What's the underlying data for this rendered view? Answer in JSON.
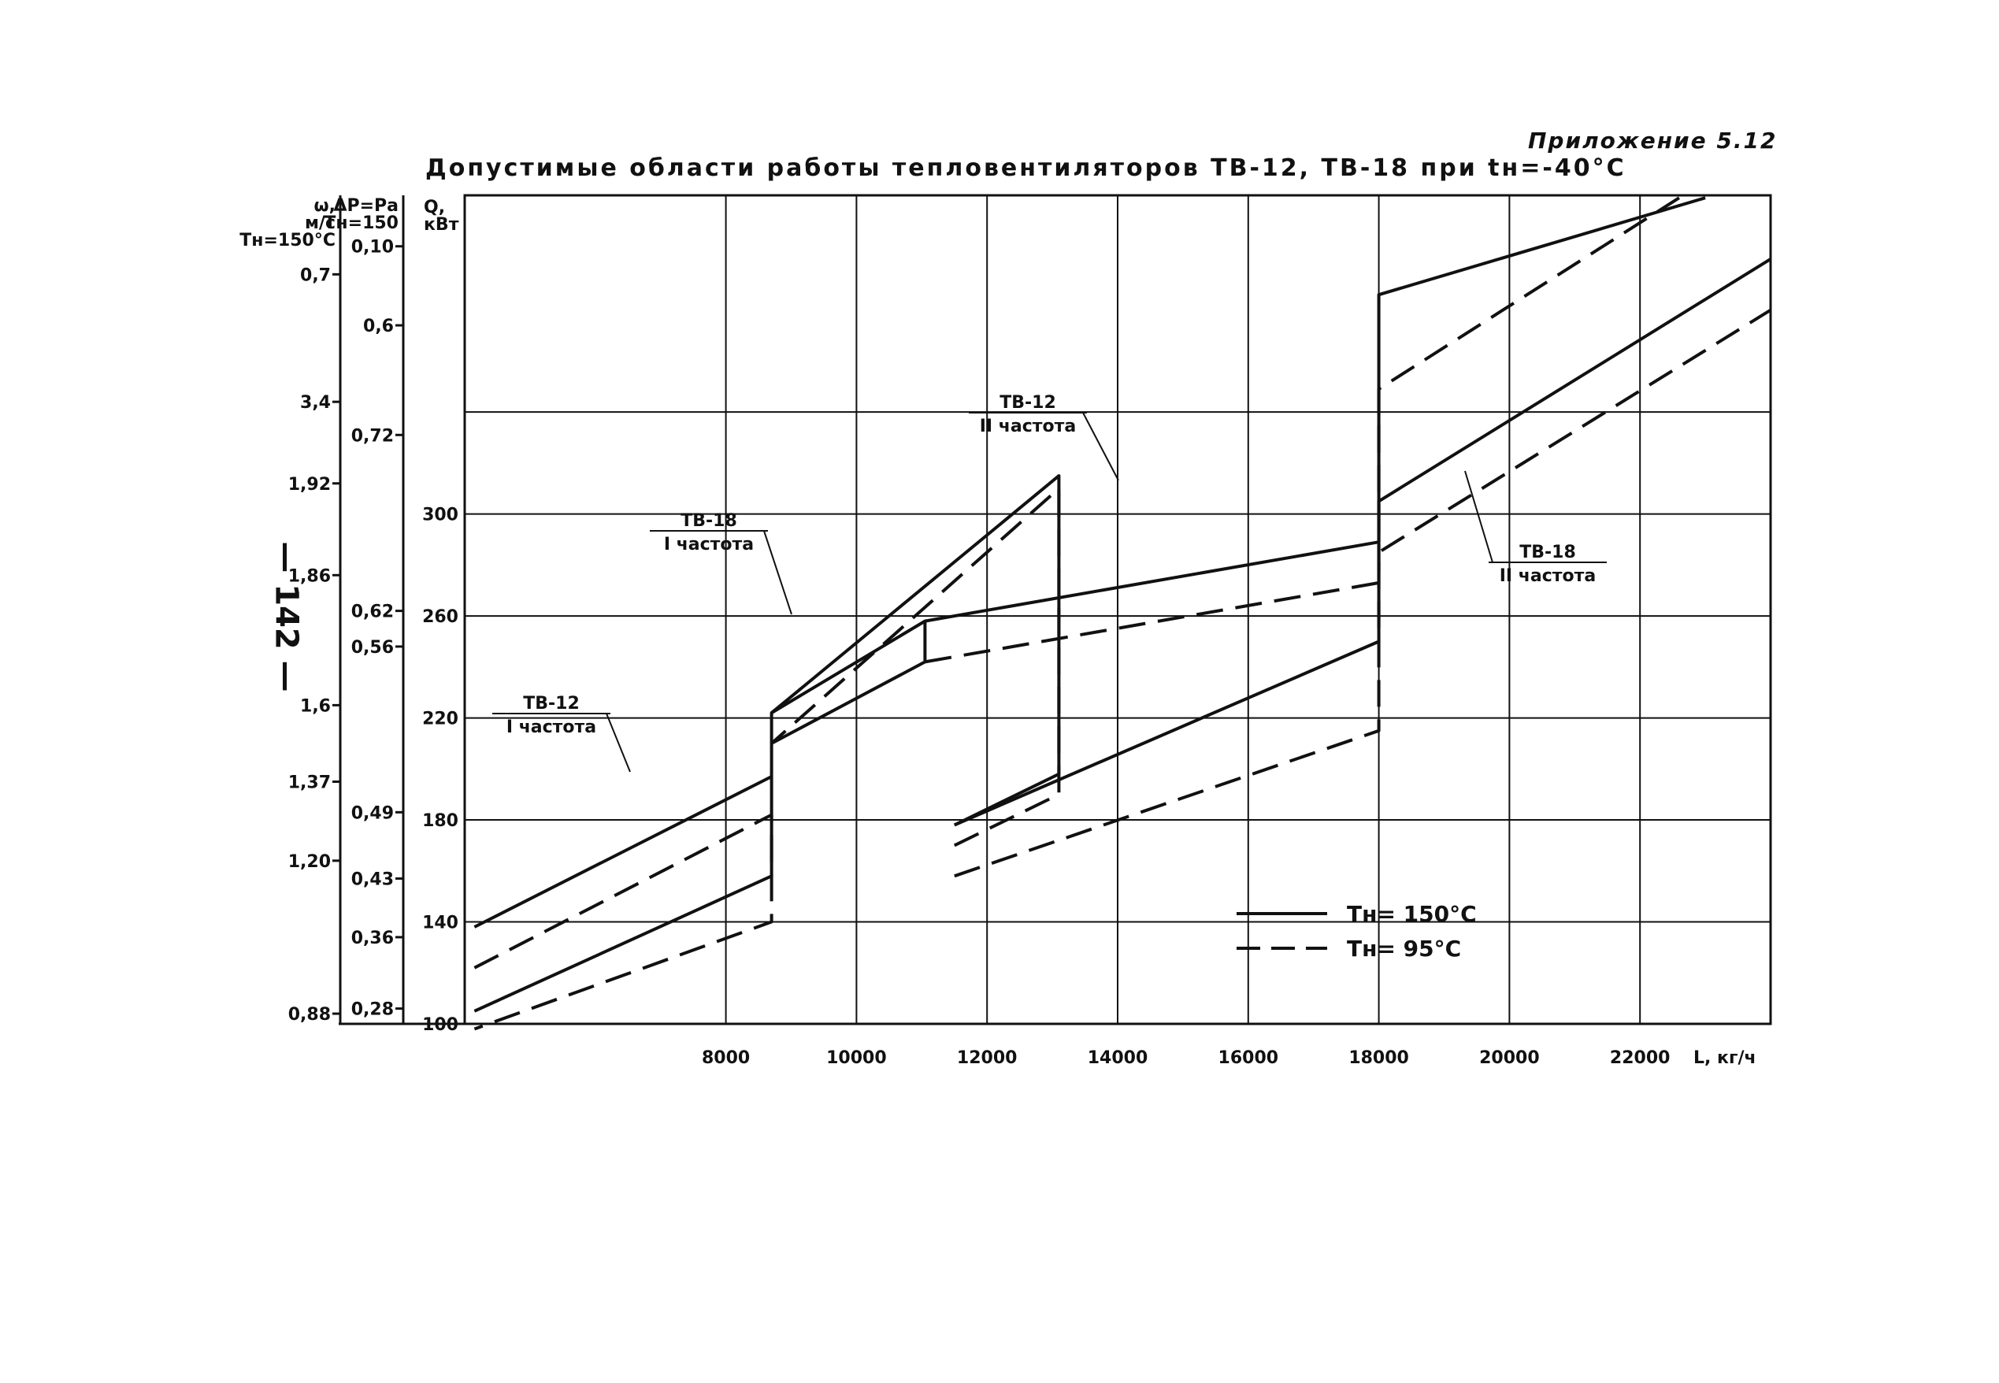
{
  "appendix_label": "Приложение 5.12",
  "side_note": "— 142 —",
  "chart_data": {
    "type": "line",
    "title": "Допустимые области работы тепловентиляторов ТВ-12, ТВ-18 при tн=-40°С",
    "xlabel": "L, кг/ч",
    "xlim": [
      4000,
      24000
    ],
    "x_ticks": [
      {
        "value": 8000,
        "label": "8000"
      },
      {
        "value": 10000,
        "label": "10000"
      },
      {
        "value": 12000,
        "label": "12000"
      },
      {
        "value": 14000,
        "label": "14000"
      },
      {
        "value": 16000,
        "label": "16000"
      },
      {
        "value": 18000,
        "label": "18000"
      },
      {
        "value": 20000,
        "label": "20000"
      },
      {
        "value": 22000,
        "label": "22000"
      }
    ],
    "ylabel": "Q, кВт",
    "ylim": [
      100,
      425
    ],
    "y_ticks": [
      {
        "value": 100,
        "label": "100"
      },
      {
        "value": 140,
        "label": "140"
      },
      {
        "value": 180,
        "label": "180"
      },
      {
        "value": 220,
        "label": "220"
      },
      {
        "value": 260,
        "label": "260"
      },
      {
        "value": 300,
        "label": "300"
      }
    ],
    "aux_axes": [
      {
        "header": [
          "ω,",
          "м/с",
          "Tн=150°С"
        ],
        "ticks": [
          {
            "y": 394,
            "label": "0,7"
          },
          {
            "y": 344,
            "label": "3,4"
          },
          {
            "y": 312,
            "label": "1,92"
          },
          {
            "y": 276,
            "label": "1,86"
          },
          {
            "y": 225,
            "label": "1,6"
          },
          {
            "y": 195,
            "label": "1,37"
          },
          {
            "y": 164,
            "label": "1,20"
          },
          {
            "y": 104,
            "label": "0,88"
          }
        ]
      },
      {
        "header": [
          "ΔP=Pа",
          "Tн=150"
        ],
        "ticks": [
          {
            "y": 405,
            "label": "0,10"
          },
          {
            "y": 374,
            "label": "0,6"
          },
          {
            "y": 331,
            "label": "0,72"
          },
          {
            "y": 262,
            "label": "0,62"
          },
          {
            "y": 248,
            "label": "0,56"
          },
          {
            "y": 183,
            "label": "0,49"
          },
          {
            "y": 157,
            "label": "0,43"
          },
          {
            "y": 134,
            "label": "0,36"
          },
          {
            "y": 106,
            "label": "0,28"
          }
        ]
      }
    ],
    "grid": true,
    "legend": {
      "placement": "bottom-right",
      "entries": [
        {
          "style": "solid",
          "label": "Тн= 150°С"
        },
        {
          "style": "dashed",
          "label": "Тн= 95°С"
        }
      ]
    },
    "regions": [
      {
        "label": [
          "ТВ-12",
          "I частота"
        ],
        "series": [
          {
            "style": "solid",
            "points": [
              [
                4150,
                138
              ],
              [
                8700,
                197
              ],
              [
                8700,
                222
              ],
              [
                11050,
                258
              ],
              [
                11050,
                242
              ],
              [
                8700,
                210
              ],
              [
                8700,
                158
              ],
              [
                4150,
                105
              ]
            ]
          },
          {
            "style": "dashed",
            "points": [
              [
                4150,
                122
              ],
              [
                8700,
                182
              ],
              [
                8700,
                140
              ],
              [
                4150,
                98
              ]
            ]
          }
        ]
      },
      {
        "label": [
          "ТВ-18",
          "I частота"
        ],
        "series": [
          {
            "style": "solid",
            "points": [
              [
                11500,
                178
              ],
              [
                13100,
                198
              ],
              [
                13100,
                315
              ],
              [
                8700,
                222
              ]
            ]
          },
          {
            "style": "dashed",
            "points": [
              [
                11500,
                170
              ],
              [
                13100,
                190
              ],
              [
                13100,
                310
              ],
              [
                8700,
                210
              ]
            ]
          }
        ]
      },
      {
        "label": [
          "ТВ-12",
          "II частота"
        ],
        "series": [
          {
            "style": "solid",
            "points": [
              [
                11050,
                258
              ],
              [
                18000,
                289
              ],
              [
                18000,
                386
              ],
              [
                23000,
                424
              ]
            ]
          },
          {
            "style": "dashed",
            "points": [
              [
                11050,
                242
              ],
              [
                18000,
                273
              ],
              [
                18000,
                349
              ],
              [
                22600,
                424
              ]
            ]
          }
        ]
      },
      {
        "label": [
          "ТВ-18",
          "II частота"
        ],
        "series": [
          {
            "style": "solid",
            "points": [
              [
                11500,
                178
              ],
              [
                18000,
                250
              ],
              [
                18000,
                305
              ],
              [
                24000,
                400
              ]
            ]
          },
          {
            "style": "dashed",
            "points": [
              [
                11500,
                158
              ],
              [
                18000,
                215
              ],
              [
                18000,
                285
              ],
              [
                24000,
                380
              ]
            ]
          }
        ]
      }
    ]
  }
}
